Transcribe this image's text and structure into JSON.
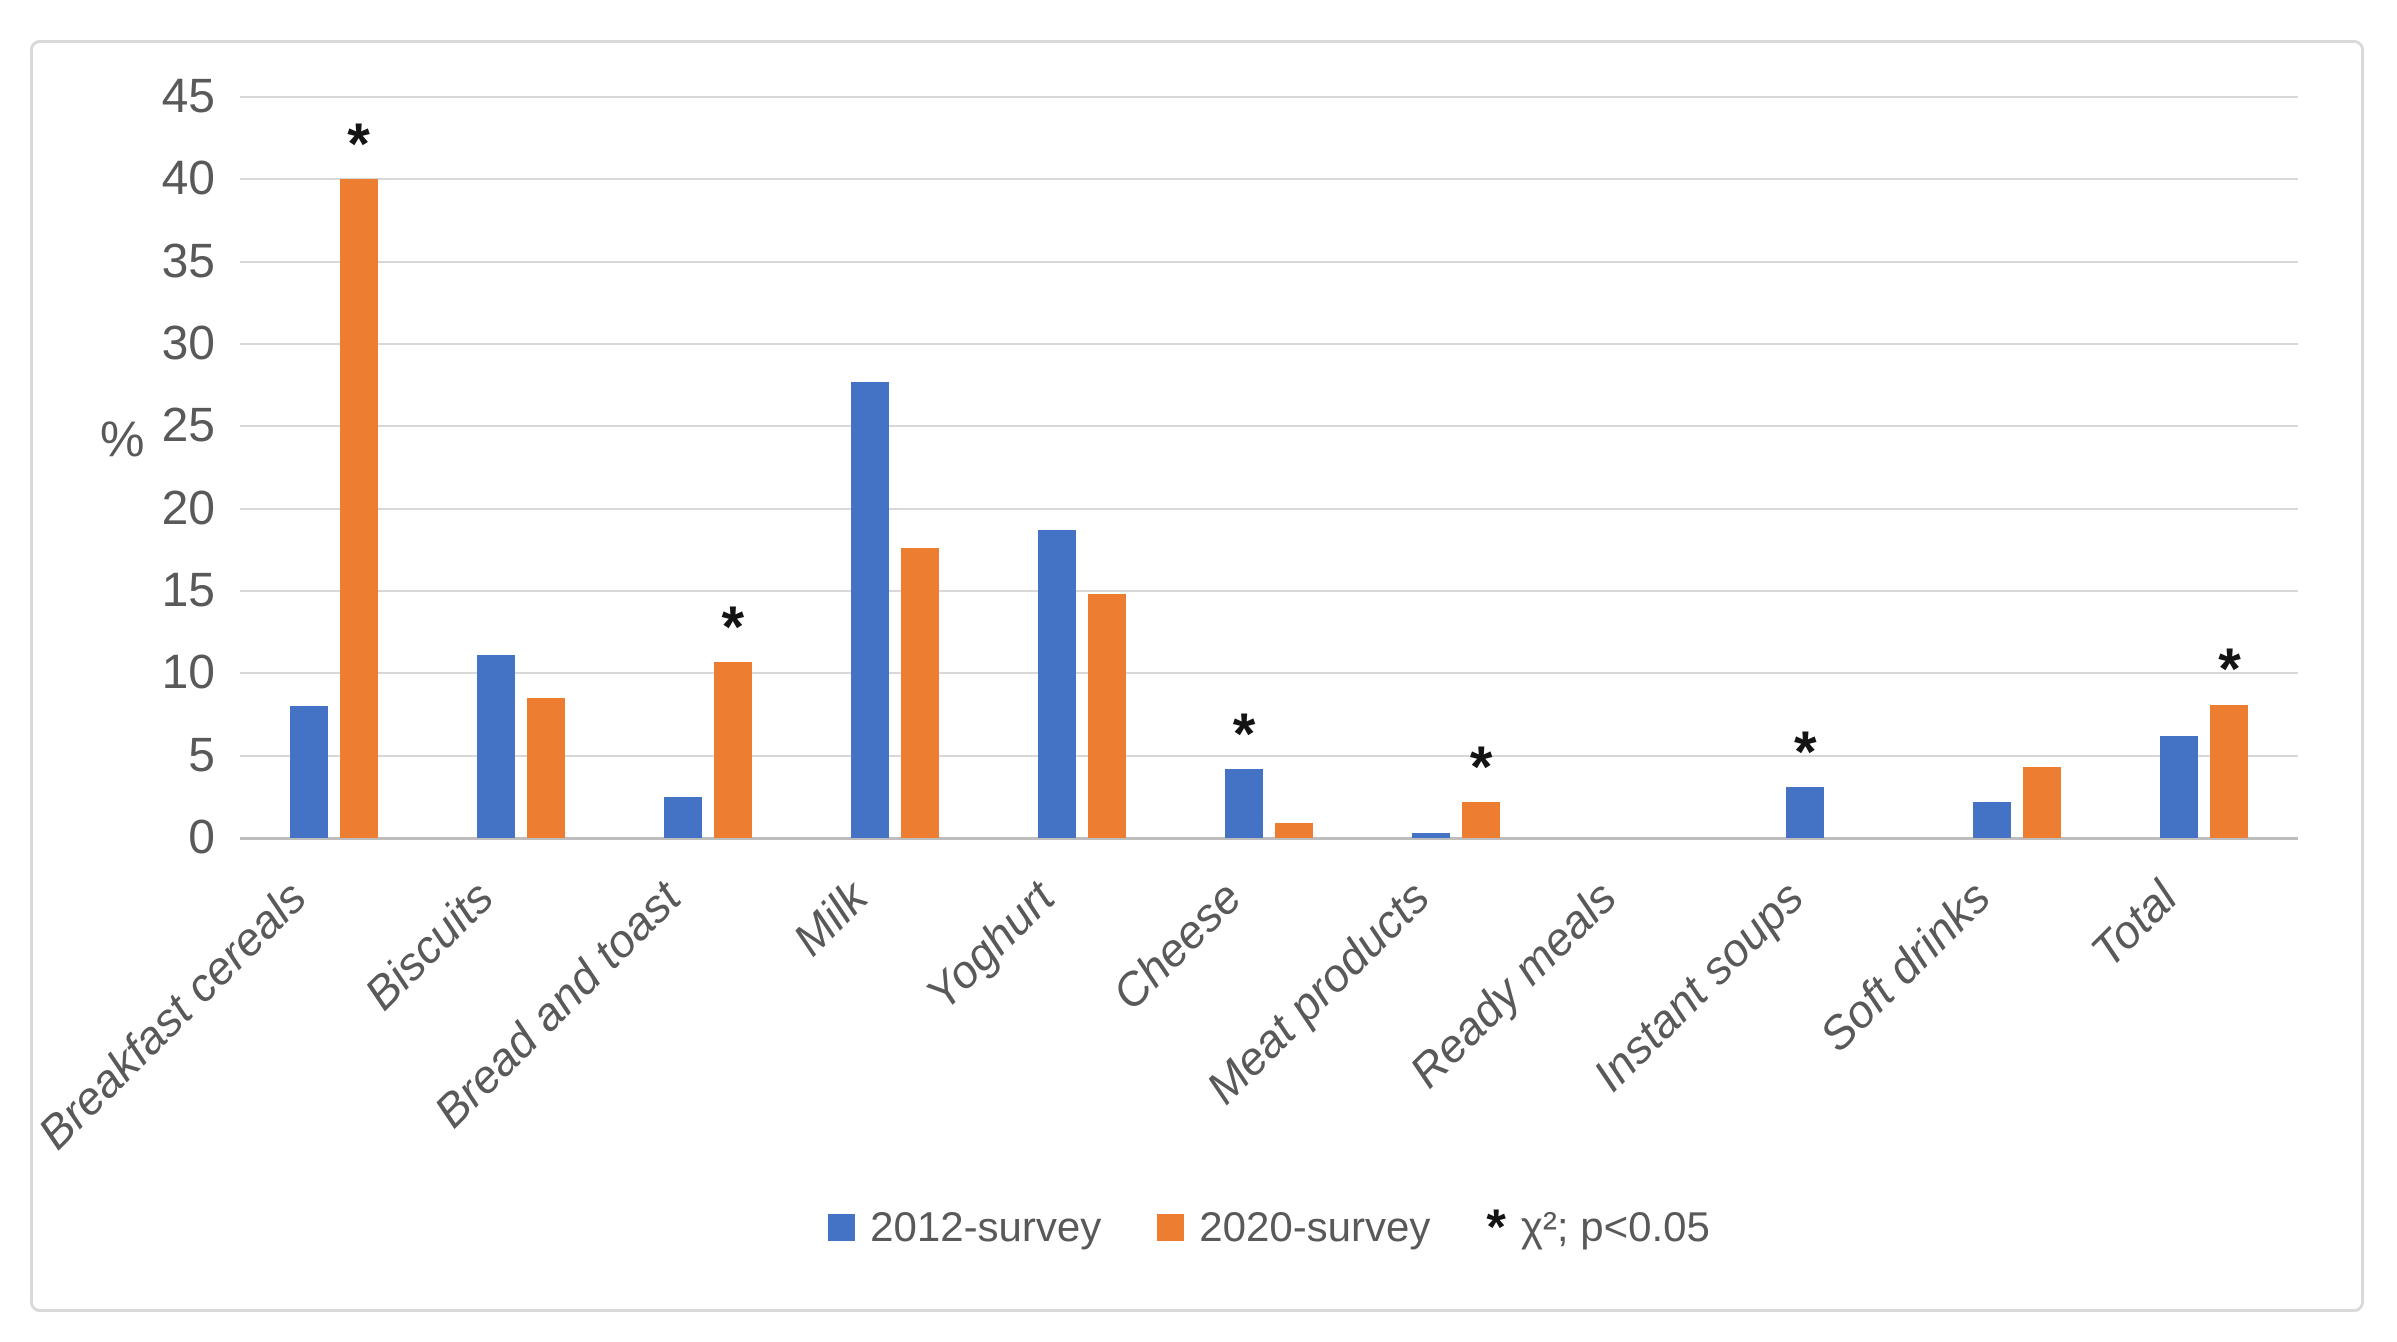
{
  "chart_data": {
    "type": "bar",
    "title": "",
    "xlabel": "",
    "ylabel": "%",
    "ylim": [
      0,
      45
    ],
    "ytick_step": 5,
    "grid": true,
    "legend_position": "bottom",
    "categories": [
      "Breakfast cereals",
      "Biscuits",
      "Bread and toast",
      "Milk",
      "Yoghurt",
      "Cheese",
      "Meat products",
      "Ready meals",
      "Instant soups",
      "Soft drinks",
      "Total"
    ],
    "series": [
      {
        "name": "2012-survey",
        "color": "#4472C4",
        "values": [
          8.0,
          11.1,
          2.5,
          27.7,
          18.7,
          4.2,
          0.3,
          0,
          3.1,
          2.2,
          6.2
        ],
        "significant": [
          false,
          false,
          false,
          false,
          false,
          true,
          false,
          false,
          true,
          false,
          false
        ]
      },
      {
        "name": "2020-survey",
        "color": "#ED7D31",
        "values": [
          40.0,
          8.5,
          10.7,
          17.6,
          14.8,
          0.9,
          2.2,
          0,
          0,
          4.3,
          8.1
        ],
        "significant": [
          true,
          false,
          true,
          false,
          false,
          false,
          true,
          false,
          false,
          false,
          true
        ]
      }
    ],
    "legend": {
      "sig_marker": "*",
      "sig_label": "χ²; p<0.05"
    }
  },
  "colors": {
    "background": "#ffffff",
    "frame_border": "#d9d9d9",
    "gridline": "#d8d8d8",
    "axis_line": "#bdbdbd",
    "axis_text": "#595959",
    "sig_marker": "#141414",
    "series_blue": "#4472C4",
    "series_orange": "#ED7D31"
  }
}
